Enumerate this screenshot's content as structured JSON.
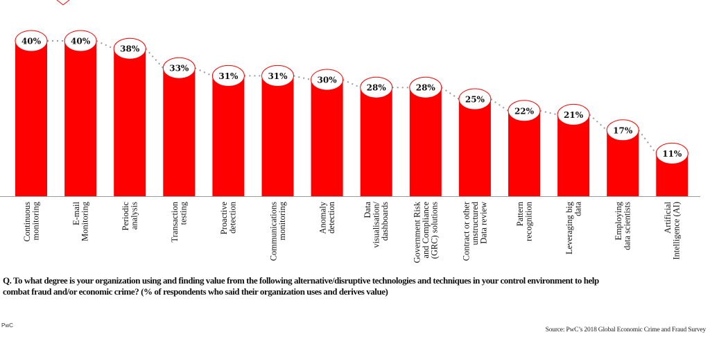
{
  "chart_data": {
    "type": "bar",
    "title": "",
    "xlabel": "",
    "ylabel": "",
    "ylim": [
      0,
      40
    ],
    "grid": false,
    "categories": [
      [
        "Continuous",
        "monitoring"
      ],
      [
        "E-mail",
        "Monitoring"
      ],
      [
        "Periodic",
        "analysis"
      ],
      [
        "Transaction",
        "testing"
      ],
      [
        "Proactive",
        "detection"
      ],
      [
        "Communications",
        "monitoring"
      ],
      [
        "Anomaly",
        "detection"
      ],
      [
        "Data",
        "visualisation/",
        "dashboards"
      ],
      [
        "Government Risk",
        "and Compliance",
        "(GRC) solutions"
      ],
      [
        "Contract or other",
        "unstructured",
        "Data  review"
      ],
      [
        "Pattern",
        "recognition"
      ],
      [
        "Leveraging big",
        "data"
      ],
      [
        "Employing",
        "data scientists"
      ],
      [
        "Artificial",
        "Intelligence (AI)"
      ]
    ],
    "values": [
      40,
      40,
      38,
      33,
      31,
      31,
      30,
      28,
      28,
      25,
      22,
      21,
      17,
      11
    ],
    "data_labels": [
      "40%",
      "40%",
      "38%",
      "33%",
      "31%",
      "31%",
      "30%",
      "28%",
      "28%",
      "25%",
      "22%",
      "21%",
      "17%",
      "11%"
    ],
    "bar_color": "#ff0000",
    "trend_line_color": "#999999"
  },
  "question": {
    "line1": "Q. To what degree is your organization using and finding value from the following alternative/disruptive technologies and techniques in your control environment to help",
    "line2": "combat fraud and/or economic crime? (% of respondents who said their organization uses and derives value)"
  },
  "brand": "PwC",
  "source": "Source: PwC’s 2018 Global Economic Crime and Fraud Survey"
}
